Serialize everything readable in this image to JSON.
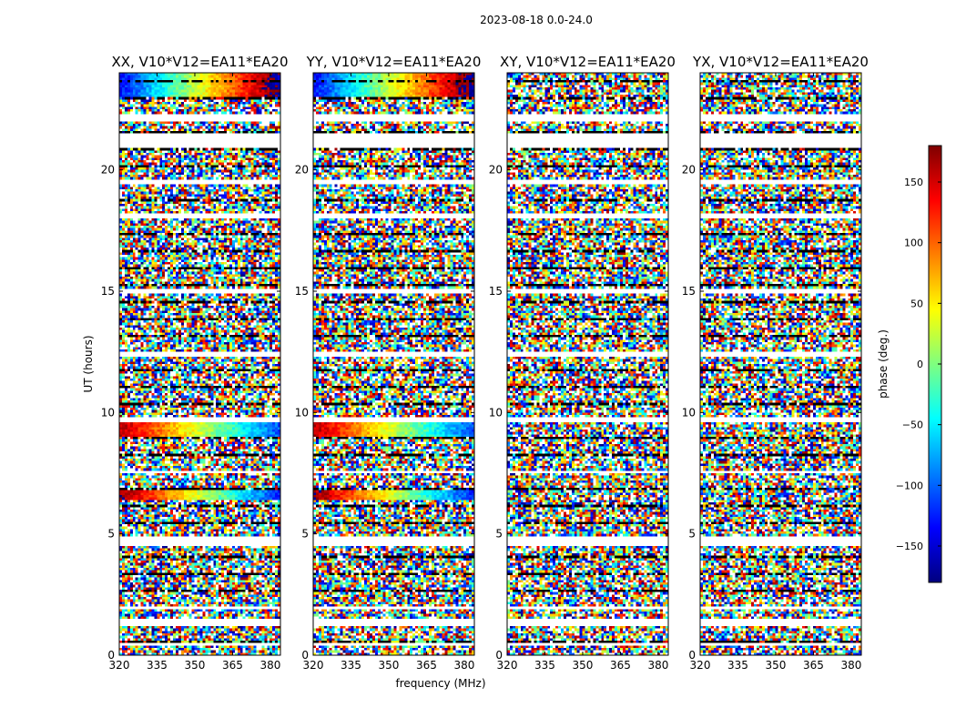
{
  "suptitle": "2023-08-18 0.0-24.0",
  "ylabel": "UT (hours)",
  "xlabel": "frequency (MHz)",
  "colorbar": {
    "label": "phase (deg.)",
    "range": [
      -180,
      180
    ],
    "ticks": [
      150,
      100,
      50,
      0,
      -50,
      -100,
      -150
    ],
    "tick_labels": [
      "150",
      "100",
      "50",
      "0",
      "−50",
      "−100",
      "−150"
    ],
    "colormap": "jet",
    "colors": [
      "#00007f",
      "#0000ff",
      "#007fff",
      "#00ffff",
      "#7fff7f",
      "#ffff00",
      "#ff7f00",
      "#ff0000",
      "#7f0000"
    ]
  },
  "chart_data": {
    "type": "heatmap",
    "description_of_values": "visibility phase vs frequency and time",
    "x_ticks": [
      320,
      335,
      350,
      365,
      380
    ],
    "x_tick_labels": [
      "320",
      "335",
      "350",
      "365",
      "380"
    ],
    "xlim": [
      320,
      384
    ],
    "y_ticks": [
      0,
      5,
      10,
      15,
      20
    ],
    "y_tick_labels": [
      "0",
      "5",
      "10",
      "15",
      "20"
    ],
    "ylim": [
      0,
      24
    ],
    "panels": [
      {
        "title": "XX, V10*V12=EA11*EA20",
        "pol": "XX"
      },
      {
        "title": "YY, V10*V12=EA11*EA20",
        "pol": "YY"
      },
      {
        "title": "XY, V10*V12=EA11*EA20",
        "pol": "XY"
      },
      {
        "title": "YX, V10*V12=EA11*EA20",
        "pol": "YX"
      }
    ],
    "flagged_hours": [
      [
        0.4,
        0.5
      ],
      [
        1.2,
        1.45
      ],
      [
        1.9,
        2.05
      ],
      [
        4.55,
        4.9
      ],
      [
        7.45,
        7.6
      ],
      [
        9.65,
        9.8
      ],
      [
        12.3,
        12.5
      ],
      [
        14.95,
        15.1
      ],
      [
        18.05,
        18.2
      ],
      [
        19.4,
        19.6
      ],
      [
        20.95,
        21.5
      ],
      [
        22.05,
        22.25
      ]
    ],
    "coherent_rows": [
      {
        "hours": [
          23.0,
          24.0
        ],
        "phase_start": -130,
        "phase_slope": 5.5
      },
      {
        "hours": [
          9.0,
          9.55
        ],
        "phase_start": 160,
        "phase_slope": -4.5
      },
      {
        "hours": [
          6.35,
          6.8
        ],
        "phase_start": 175,
        "phase_slope": -5.0
      },
      {
        "hours": [
          0.5,
          0.62
        ],
        "phase_start": 120,
        "phase_slope": -3.0
      }
    ]
  }
}
